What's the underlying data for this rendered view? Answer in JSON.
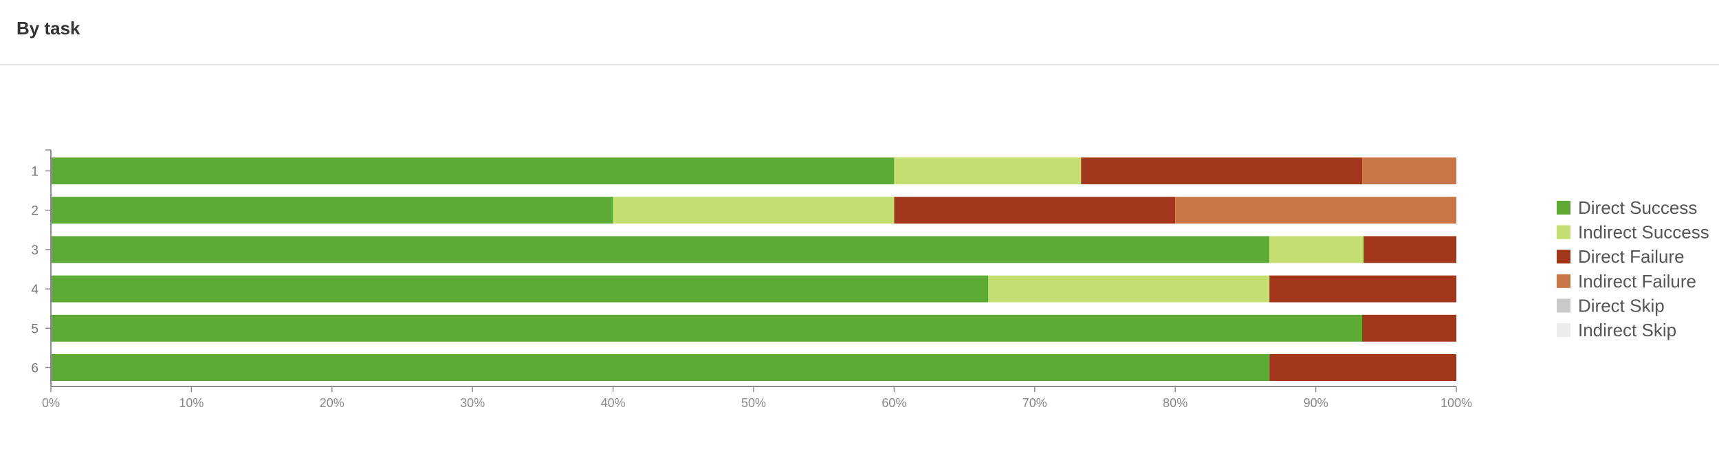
{
  "header": {
    "title": "By task"
  },
  "chart_data": {
    "type": "bar",
    "orientation": "horizontal",
    "stacked": true,
    "categories": [
      "1",
      "2",
      "3",
      "4",
      "5",
      "6"
    ],
    "series": [
      {
        "name": "Direct Success",
        "color": "#5dab35",
        "values": [
          60,
          40,
          86.7,
          66.7,
          93.3,
          86.7
        ]
      },
      {
        "name": "Indirect Success",
        "color": "#c4de71",
        "values": [
          13.3,
          20,
          6.7,
          20,
          0,
          0
        ]
      },
      {
        "name": "Direct Failure",
        "color": "#a3371c",
        "values": [
          20,
          20,
          6.6,
          13.3,
          6.7,
          13.3
        ]
      },
      {
        "name": "Indirect Failure",
        "color": "#c97646",
        "values": [
          6.7,
          20,
          0,
          0,
          0,
          0
        ]
      },
      {
        "name": "Direct Skip",
        "color": "#c9c9c9",
        "values": [
          0,
          0,
          0,
          0,
          0,
          0
        ]
      },
      {
        "name": "Indirect Skip",
        "color": "#ebebeb",
        "values": [
          0,
          0,
          0,
          0,
          0,
          0
        ]
      }
    ],
    "xlim": [
      0,
      100
    ],
    "x_ticks": [
      "0%",
      "10%",
      "20%",
      "30%",
      "40%",
      "50%",
      "60%",
      "70%",
      "80%",
      "90%",
      "100%"
    ],
    "legend": "right",
    "grid": false
  }
}
